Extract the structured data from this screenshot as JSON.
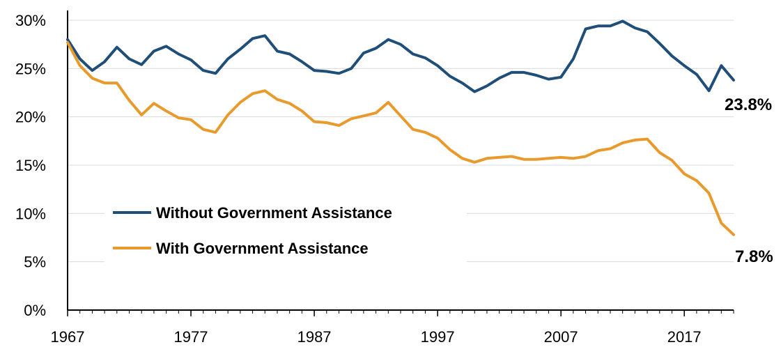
{
  "chart_data": {
    "type": "line",
    "title": "",
    "xlabel": "",
    "ylabel": "",
    "x_ticks": [
      "1967",
      "1977",
      "1987",
      "1997",
      "2007",
      "2017"
    ],
    "y_ticks": [
      "0%",
      "5%",
      "10%",
      "15%",
      "20%",
      "25%",
      "30%"
    ],
    "xlim": [
      1967,
      2021
    ],
    "ylim": [
      0,
      30
    ],
    "grid": "horizontal",
    "legend_position": "bottom-left",
    "x": [
      1967,
      1968,
      1969,
      1970,
      1971,
      1972,
      1973,
      1974,
      1975,
      1976,
      1977,
      1978,
      1979,
      1980,
      1981,
      1982,
      1983,
      1984,
      1985,
      1986,
      1987,
      1988,
      1989,
      1990,
      1991,
      1992,
      1993,
      1994,
      1995,
      1996,
      1997,
      1998,
      1999,
      2000,
      2001,
      2002,
      2003,
      2004,
      2005,
      2006,
      2007,
      2008,
      2009,
      2010,
      2011,
      2012,
      2013,
      2014,
      2015,
      2016,
      2017,
      2018,
      2019,
      2020,
      2021
    ],
    "series": [
      {
        "name": "Without Government Assistance",
        "color": "#1f4e79",
        "values": [
          28.0,
          26.0,
          24.8,
          25.7,
          27.2,
          26.0,
          25.4,
          26.8,
          27.3,
          26.5,
          25.9,
          24.8,
          24.5,
          26.0,
          27.0,
          28.1,
          28.4,
          26.8,
          26.5,
          25.7,
          24.8,
          24.7,
          24.5,
          25.0,
          26.6,
          27.1,
          28.0,
          27.5,
          26.5,
          26.1,
          25.3,
          24.2,
          23.5,
          22.6,
          23.2,
          24.0,
          24.6,
          24.6,
          24.3,
          23.9,
          24.1,
          26.0,
          29.1,
          29.4,
          29.4,
          29.9,
          29.2,
          28.8,
          27.6,
          26.3,
          25.3,
          24.4,
          22.7,
          25.3,
          23.8
        ]
      },
      {
        "name": "With Government Assistance",
        "color": "#e89b2c",
        "values": [
          27.7,
          25.3,
          24.0,
          23.5,
          23.5,
          21.7,
          20.2,
          21.4,
          20.6,
          19.9,
          19.7,
          18.7,
          18.4,
          20.2,
          21.5,
          22.4,
          22.7,
          21.8,
          21.4,
          20.6,
          19.5,
          19.4,
          19.1,
          19.8,
          20.1,
          20.4,
          21.5,
          20.1,
          18.7,
          18.4,
          17.8,
          16.6,
          15.7,
          15.3,
          15.7,
          15.8,
          15.9,
          15.6,
          15.6,
          15.7,
          15.8,
          15.7,
          15.9,
          16.5,
          16.7,
          17.3,
          17.6,
          17.7,
          16.3,
          15.5,
          14.1,
          13.4,
          12.1,
          9.0,
          7.8
        ]
      }
    ],
    "end_labels": [
      "23.8%",
      "7.8%"
    ]
  }
}
